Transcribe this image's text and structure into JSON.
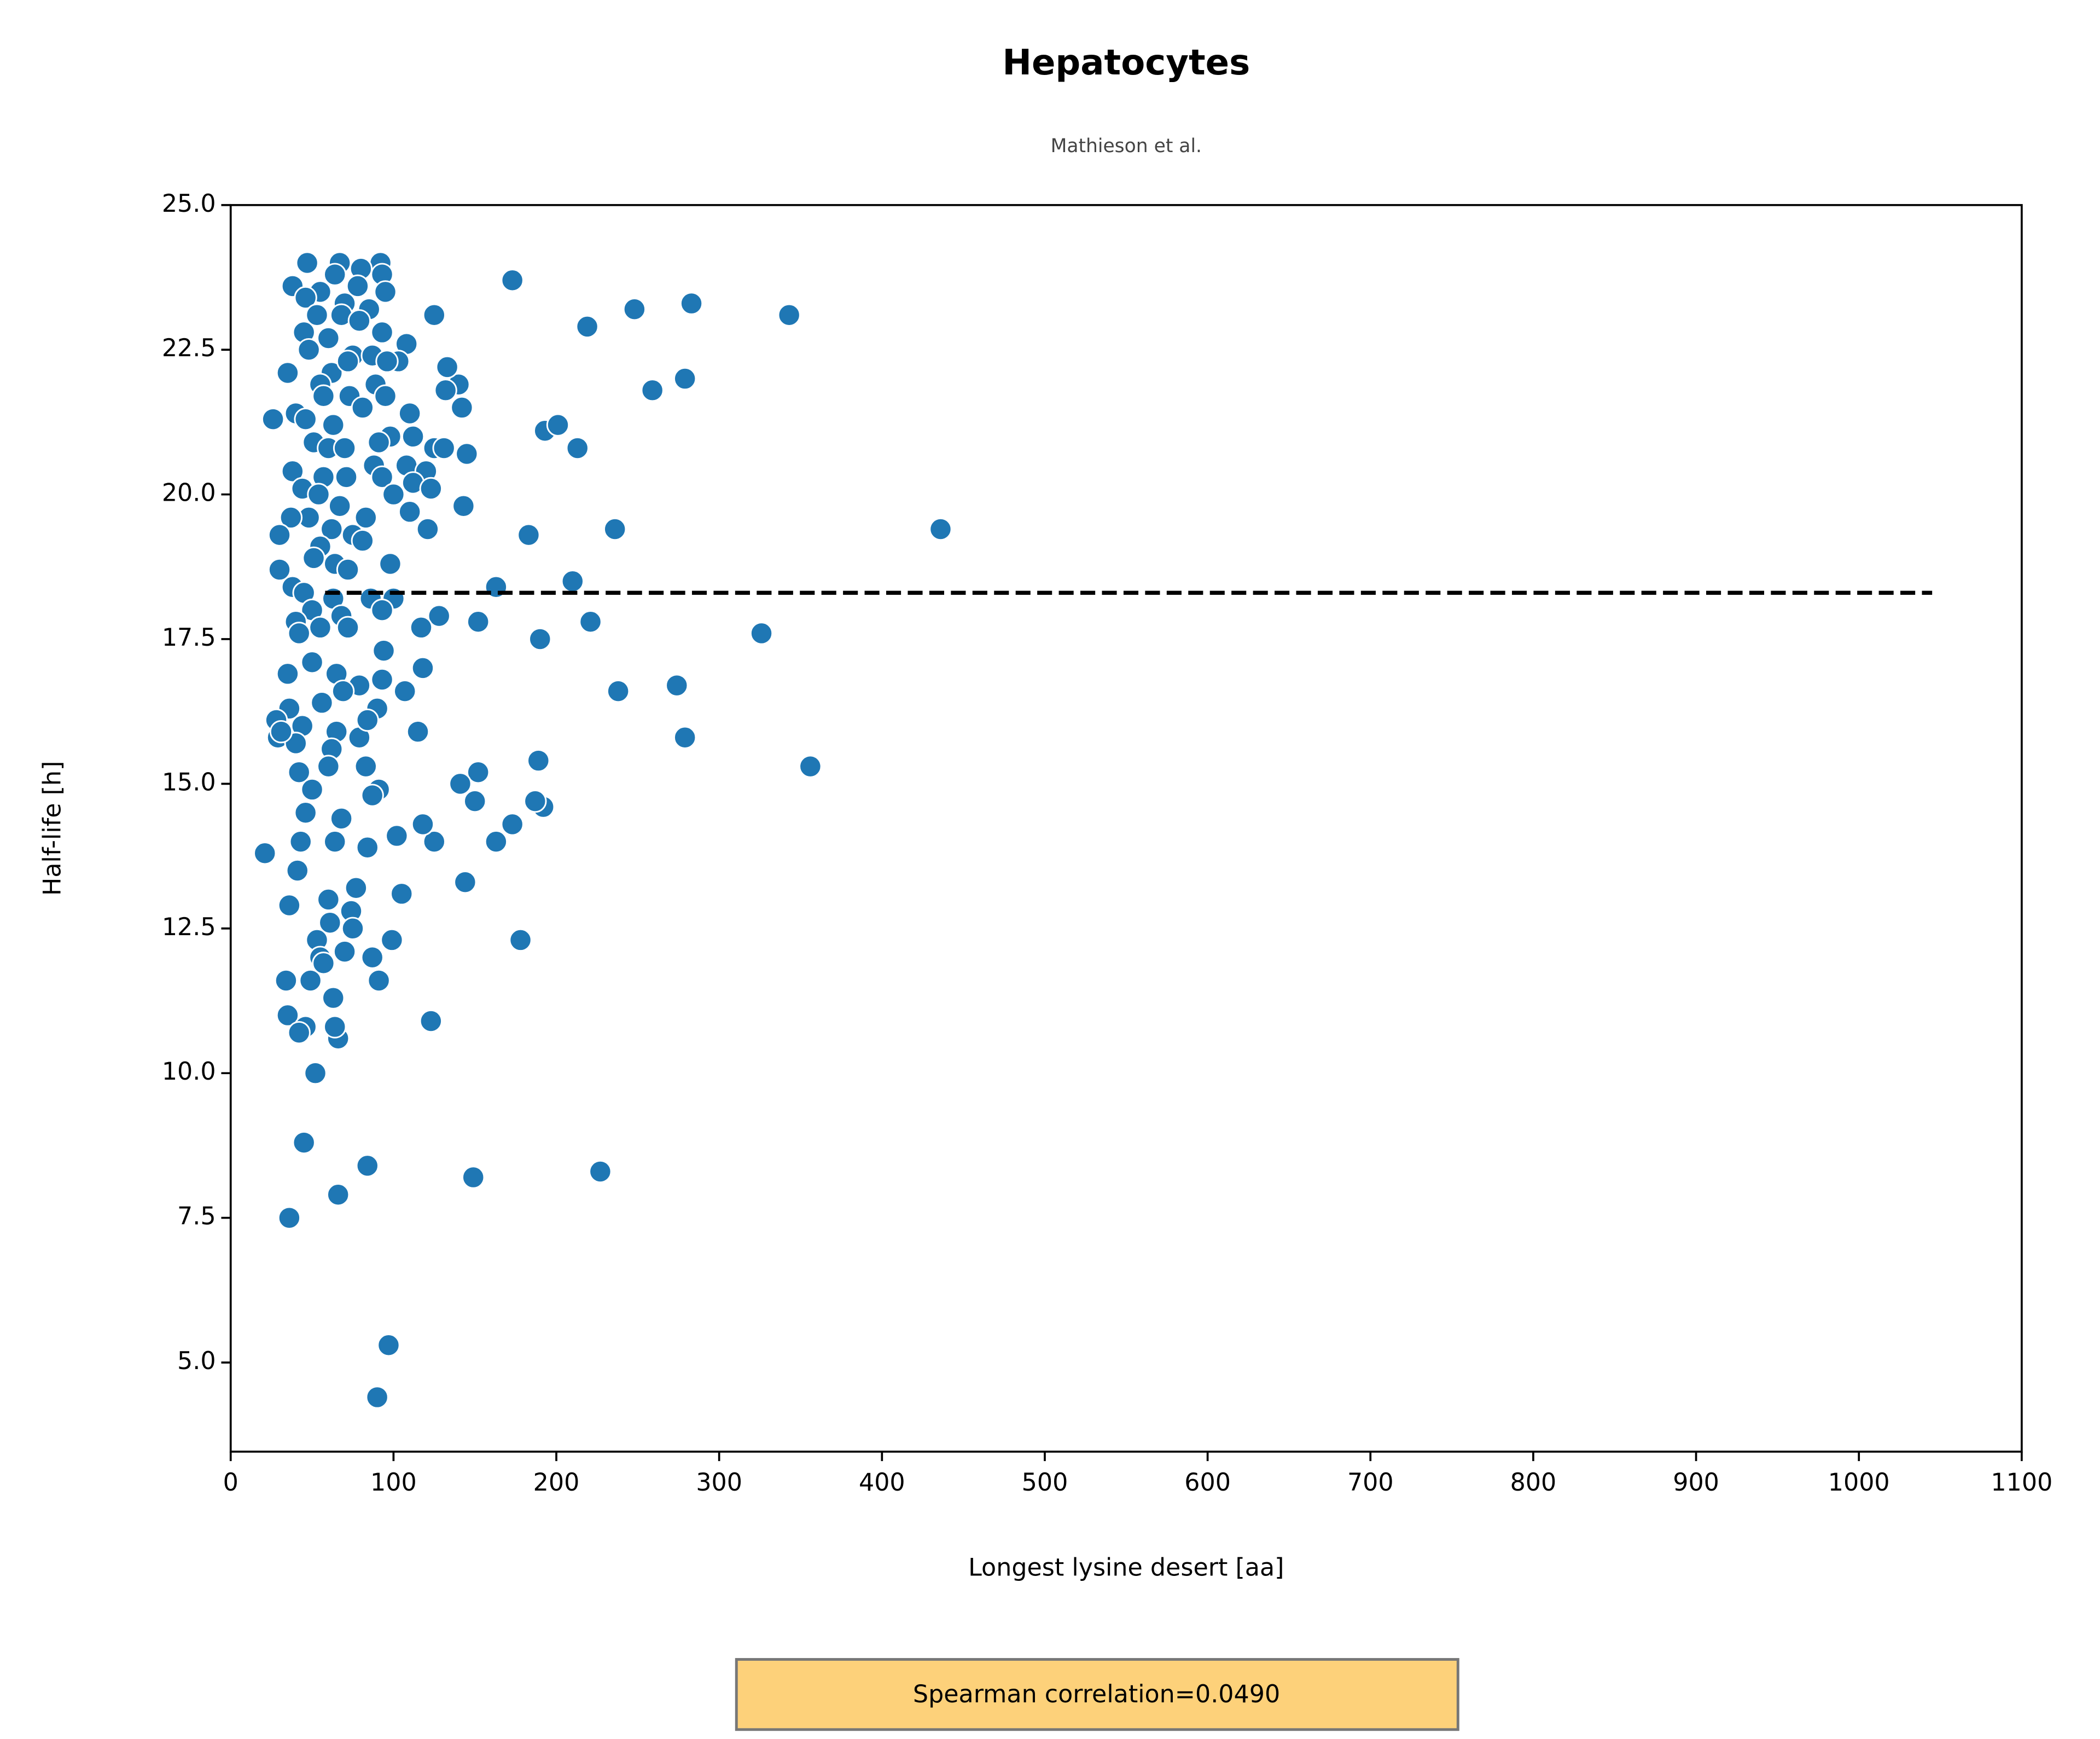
{
  "chart_data": {
    "type": "scatter",
    "title": "Hepatocytes",
    "subtitle": "Mathieson et al.",
    "x_label": "Longest lysine desert [aa]",
    "y_label": "Half-life [h]",
    "annotation": "Spearman correlation=0.0490",
    "color": "#1f77b4",
    "xlim": [
      0,
      1100
    ],
    "ylim": [
      3.46,
      25.0
    ],
    "xticks": [
      0,
      100,
      200,
      300,
      400,
      500,
      600,
      700,
      800,
      900,
      1000,
      1100
    ],
    "yticks": [
      {
        "value": 5,
        "label": "5.0"
      },
      7.5,
      {
        "value": 10,
        "label": "10.0"
      },
      12.5,
      {
        "value": 15,
        "label": "15.0"
      },
      17.5,
      {
        "value": 20,
        "label": "20.0"
      },
      22.5,
      {
        "value": 25,
        "label": "25.0"
      }
    ],
    "x": [
      436,
      343,
      283,
      248,
      173,
      219,
      279,
      259,
      213,
      193,
      201,
      236,
      183,
      210,
      163,
      326,
      221,
      190,
      152,
      274,
      238,
      279,
      356,
      189,
      192,
      187,
      152,
      141,
      150,
      173,
      163,
      178,
      144,
      227,
      149,
      84,
      66,
      36,
      45,
      97,
      90,
      52,
      123,
      21,
      26,
      105,
      99,
      102,
      125,
      118,
      115,
      118,
      107,
      128,
      117,
      143,
      145,
      142,
      140,
      125,
      133,
      132,
      108,
      47,
      67,
      92,
      80,
      64,
      93,
      38,
      78,
      55,
      95,
      46,
      70,
      85,
      53,
      68,
      79,
      45,
      60,
      93,
      48,
      75,
      87,
      103,
      35,
      62,
      72,
      96,
      55,
      89,
      73,
      57,
      110,
      40,
      46,
      81,
      95,
      63,
      98,
      112,
      51,
      60,
      70,
      91,
      125,
      131,
      88,
      108,
      120,
      38,
      57,
      71,
      93,
      112,
      123,
      44,
      54,
      100,
      67,
      83,
      110,
      48,
      37,
      30,
      62,
      75,
      121,
      55,
      81,
      51,
      64,
      98,
      30,
      72,
      38,
      45,
      63,
      86,
      100,
      93,
      50,
      68,
      40,
      55,
      42,
      72,
      94,
      50,
      35,
      65,
      93,
      79,
      69,
      56,
      36,
      90,
      44,
      28,
      65,
      29,
      79,
      40,
      62,
      60,
      83,
      42,
      50,
      91,
      87,
      46,
      68,
      43,
      64,
      84,
      41,
      77,
      36,
      60,
      74,
      61,
      75,
      53,
      70,
      55,
      87,
      57,
      34,
      49,
      91,
      63,
      35,
      46,
      42,
      66,
      64,
      31,
      84
    ],
    "values": [
      19.4,
      23.1,
      23.3,
      23.2,
      23.7,
      22.9,
      22.0,
      21.8,
      20.8,
      21.1,
      21.2,
      19.4,
      19.3,
      18.5,
      18.4,
      17.6,
      17.8,
      17.5,
      17.8,
      16.7,
      16.6,
      15.8,
      15.3,
      15.4,
      14.6,
      14.7,
      15.2,
      15.0,
      14.7,
      14.3,
      14.0,
      12.3,
      13.3,
      8.3,
      8.2,
      8.4,
      7.9,
      7.5,
      8.8,
      5.3,
      4.4,
      10.0,
      10.9,
      13.8,
      21.3,
      13.1,
      12.3,
      14.1,
      14.0,
      14.3,
      15.9,
      17.0,
      16.6,
      17.9,
      17.7,
      19.8,
      20.7,
      21.5,
      21.9,
      23.1,
      22.2,
      21.8,
      22.6,
      24.0,
      24.0,
      24.0,
      23.9,
      23.8,
      23.8,
      23.6,
      23.6,
      23.5,
      23.5,
      23.4,
      23.3,
      23.2,
      23.1,
      23.1,
      23.0,
      22.8,
      22.7,
      22.8,
      22.5,
      22.4,
      22.4,
      22.3,
      22.1,
      22.1,
      22.3,
      22.3,
      21.9,
      21.9,
      21.7,
      21.7,
      21.4,
      21.4,
      21.3,
      21.5,
      21.7,
      21.2,
      21.0,
      21.0,
      20.9,
      20.8,
      20.8,
      20.9,
      20.8,
      20.8,
      20.5,
      20.5,
      20.4,
      20.4,
      20.3,
      20.3,
      20.3,
      20.2,
      20.1,
      20.1,
      20.0,
      20.0,
      19.8,
      19.6,
      19.7,
      19.6,
      19.6,
      19.3,
      19.4,
      19.3,
      19.4,
      19.1,
      19.2,
      18.9,
      18.8,
      18.8,
      18.7,
      18.7,
      18.4,
      18.3,
      18.2,
      18.2,
      18.2,
      18.0,
      18.0,
      17.9,
      17.8,
      17.7,
      17.6,
      17.7,
      17.3,
      17.1,
      16.9,
      16.9,
      16.8,
      16.7,
      16.6,
      16.4,
      16.3,
      16.3,
      16.0,
      16.1,
      15.9,
      15.8,
      15.8,
      15.7,
      15.6,
      15.3,
      15.3,
      15.2,
      14.9,
      14.9,
      14.8,
      14.5,
      14.4,
      14.0,
      14.0,
      13.9,
      13.5,
      13.2,
      12.9,
      13.0,
      12.8,
      12.6,
      12.5,
      12.3,
      12.1,
      12.0,
      12.0,
      11.9,
      11.6,
      11.6,
      11.6,
      11.3,
      11.0,
      10.8,
      10.7,
      10.6,
      10.8,
      15.9,
      16.1
    ],
    "trend_line": {
      "x": [
        58,
        1045
      ],
      "values": [
        18.3,
        18.3
      ],
      "color": "#000000"
    }
  }
}
